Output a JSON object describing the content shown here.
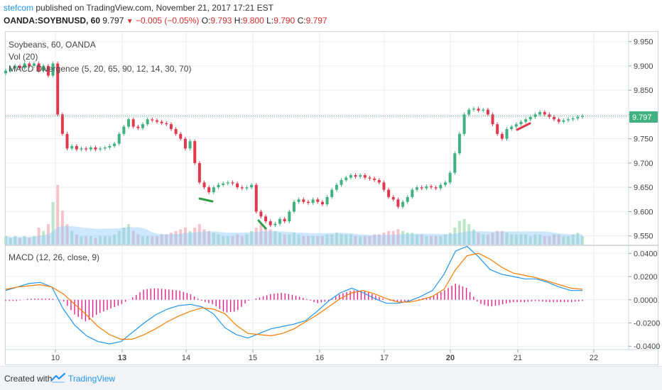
{
  "header": {
    "brand": "stefcom",
    "published": " published on TradingView.com, November 21, 2017 17:21 EST",
    "symbol": "OANDA:SOYBNUSD, 60",
    "last": "9.797",
    "change": "−0.005 (−0.05%)",
    "o_label": "O:",
    "o_value": "9.793",
    "h_label": "H:",
    "h_value": "9.800",
    "l_label": "L:",
    "l_value": "9.790",
    "c_label": "C:",
    "c_value": "9.797"
  },
  "legend": {
    "main": "Soybeans, 60, OANDA",
    "vol": "Vol (20)",
    "macd_div": "MACD Divergence (5, 20, 65, 90, 12, 14, 30, 70)",
    "macd": "MACD (12, 26, close, 9)"
  },
  "price_label": "9.797",
  "footer": {
    "created": "Created with",
    "brand": "TradingView"
  },
  "colors": {
    "up": "#26a69a",
    "up_candle": "#3fb27f",
    "down": "#e0394e",
    "macd": "#2196f3",
    "signal": "#f57c00",
    "hist": "#e91e8c",
    "vol_up": "#bde5c8",
    "vol_down": "#f4c3cb",
    "vol_ma": "#90caf9",
    "price_line": "#3fb27f",
    "price_box": "#3fb27f"
  },
  "chart_data": [
    {
      "type": "candlestick",
      "title": "Soybeans, 60, OANDA",
      "x_ticks": [
        "10",
        "13",
        "14",
        "15",
        "16",
        "17",
        "20",
        "21",
        "22"
      ],
      "y_ticks": [
        "9.950",
        "9.900",
        "9.850",
        "9.800",
        "9.750",
        "9.700",
        "9.650",
        "9.600",
        "9.550"
      ],
      "ylim": [
        9.532,
        9.97
      ],
      "grid": true,
      "current_price": 9.797,
      "close": [
        9.89,
        9.895,
        9.9,
        9.895,
        9.905,
        9.9,
        9.905,
        9.89,
        9.9,
        9.88,
        9.905,
        9.8,
        9.76,
        9.73,
        9.735,
        9.728,
        9.73,
        9.728,
        9.732,
        9.728,
        9.73,
        9.732,
        9.735,
        9.74,
        9.76,
        9.775,
        9.79,
        9.775,
        9.772,
        9.78,
        9.79,
        9.788,
        9.785,
        9.782,
        9.78,
        9.77,
        9.76,
        9.75,
        9.73,
        9.745,
        9.7,
        9.66,
        9.65,
        9.64,
        9.65,
        9.655,
        9.658,
        9.66,
        9.658,
        9.65,
        9.648,
        9.65,
        9.655,
        9.6,
        9.59,
        9.58,
        9.572,
        9.575,
        9.585,
        9.58,
        9.6,
        9.62,
        9.625,
        9.62,
        9.618,
        9.625,
        9.62,
        9.615,
        9.63,
        9.645,
        9.655,
        9.665,
        9.67,
        9.675,
        9.672,
        9.675,
        9.67,
        9.668,
        9.665,
        9.66,
        9.645,
        9.63,
        9.625,
        9.61,
        9.62,
        9.63,
        9.645,
        9.65,
        9.648,
        9.652,
        9.65,
        9.648,
        9.655,
        9.66,
        9.68,
        9.72,
        9.76,
        9.8,
        9.81,
        9.812,
        9.808,
        9.81,
        9.8,
        9.78,
        9.76,
        9.75,
        9.77,
        9.775,
        9.78,
        9.785,
        9.79,
        9.795,
        9.8,
        9.805,
        9.8,
        9.795,
        9.79,
        9.785,
        9.788,
        9.79,
        9.792,
        9.795,
        9.797
      ],
      "volume": [
        0.05,
        0.04,
        0.05,
        0.04,
        0.05,
        0.04,
        0.05,
        0.1,
        0.08,
        0.12,
        0.25,
        0.35,
        0.2,
        0.12,
        0.08,
        0.06,
        0.05,
        0.05,
        0.05,
        0.04,
        0.05,
        0.05,
        0.05,
        0.06,
        0.08,
        0.1,
        0.12,
        0.08,
        0.06,
        0.05,
        0.05,
        0.05,
        0.05,
        0.06,
        0.06,
        0.07,
        0.08,
        0.09,
        0.1,
        0.08,
        0.1,
        0.12,
        0.09,
        0.08,
        0.07,
        0.06,
        0.05,
        0.05,
        0.05,
        0.06,
        0.05,
        0.06,
        0.08,
        0.1,
        0.12,
        0.1,
        0.09,
        0.08,
        0.07,
        0.06,
        0.06,
        0.07,
        0.06,
        0.05,
        0.05,
        0.05,
        0.05,
        0.05,
        0.06,
        0.06,
        0.07,
        0.06,
        0.06,
        0.06,
        0.05,
        0.05,
        0.05,
        0.05,
        0.06,
        0.06,
        0.07,
        0.08,
        0.08,
        0.09,
        0.08,
        0.07,
        0.07,
        0.06,
        0.06,
        0.05,
        0.05,
        0.05,
        0.05,
        0.06,
        0.07,
        0.1,
        0.14,
        0.15,
        0.12,
        0.09,
        0.07,
        0.06,
        0.06,
        0.07,
        0.08,
        0.08,
        0.07,
        0.06,
        0.06,
        0.06,
        0.06,
        0.05,
        0.06,
        0.06,
        0.05,
        0.05,
        0.06,
        0.06,
        0.05,
        0.05,
        0.06,
        0.07,
        0.05
      ]
    },
    {
      "type": "line",
      "title": "MACD (12, 26, close, 9)",
      "x_ticks": [
        "10",
        "13",
        "14",
        "15",
        "16",
        "17",
        "20",
        "21",
        "22"
      ],
      "y_ticks": [
        "0.0400",
        "0.0200",
        "0.0000",
        "-0.0200",
        "-0.0400"
      ],
      "ylim": [
        -0.0423,
        0.0463
      ],
      "grid": true,
      "series": [
        {
          "values": [
            0.008,
            0.011,
            0.014,
            0.015,
            0.011,
            -0.008,
            -0.022,
            -0.031,
            -0.036,
            -0.038,
            -0.036,
            -0.028,
            -0.02,
            -0.013,
            -0.008,
            -0.005,
            -0.004,
            -0.006,
            -0.012,
            -0.024,
            -0.03,
            -0.033,
            -0.029,
            -0.025,
            -0.023,
            -0.021,
            -0.018,
            -0.01,
            -0.001,
            0.006,
            0.01,
            0.006,
            0.001,
            -0.003,
            -0.003,
            -0.001,
            0.003,
            0.008,
            0.022,
            0.042,
            0.046,
            0.037,
            0.026,
            0.022,
            0.02,
            0.018,
            0.018,
            0.015,
            0.011,
            0.008,
            0.008
          ]
        },
        {
          "values": [
            0.009,
            0.011,
            0.012,
            0.013,
            0.011,
            0.005,
            -0.004,
            -0.013,
            -0.023,
            -0.03,
            -0.034,
            -0.034,
            -0.03,
            -0.025,
            -0.019,
            -0.014,
            -0.01,
            -0.007,
            -0.008,
            -0.012,
            -0.022,
            -0.029,
            -0.03,
            -0.031,
            -0.029,
            -0.025,
            -0.019,
            -0.013,
            -0.006,
            0.001,
            0.006,
            0.008,
            0.005,
            0.001,
            -0.002,
            -0.002,
            0,
            0.003,
            0.009,
            0.026,
            0.038,
            0.04,
            0.035,
            0.028,
            0.023,
            0.021,
            0.019,
            0.016,
            0.013,
            0.01,
            0.009
          ]
        },
        {
          "values": [
            -0.001,
            -0.001,
            0.001,
            0.001,
            0.001,
            -0.001,
            -0.013,
            -0.019,
            -0.012,
            -0.008,
            -0.004,
            0.002,
            0.009,
            0.01,
            0.009,
            0.008,
            0.005,
            -0.001,
            -0.004,
            -0.011,
            -0.01,
            -0.001,
            0.002,
            0.005,
            0.006,
            0.004,
            0.001,
            -0.003,
            -0.001,
            0.005,
            0.008,
            0.008,
            0.004,
            0,
            -0.002,
            -0.001,
            0.001,
            0.003,
            0.008,
            0.014,
            0.01,
            -0.003,
            -0.006,
            -0.004,
            -0.002,
            -0.002,
            -0.001,
            -0.002,
            -0.002,
            -0.002,
            -0.001
          ]
        }
      ]
    }
  ]
}
